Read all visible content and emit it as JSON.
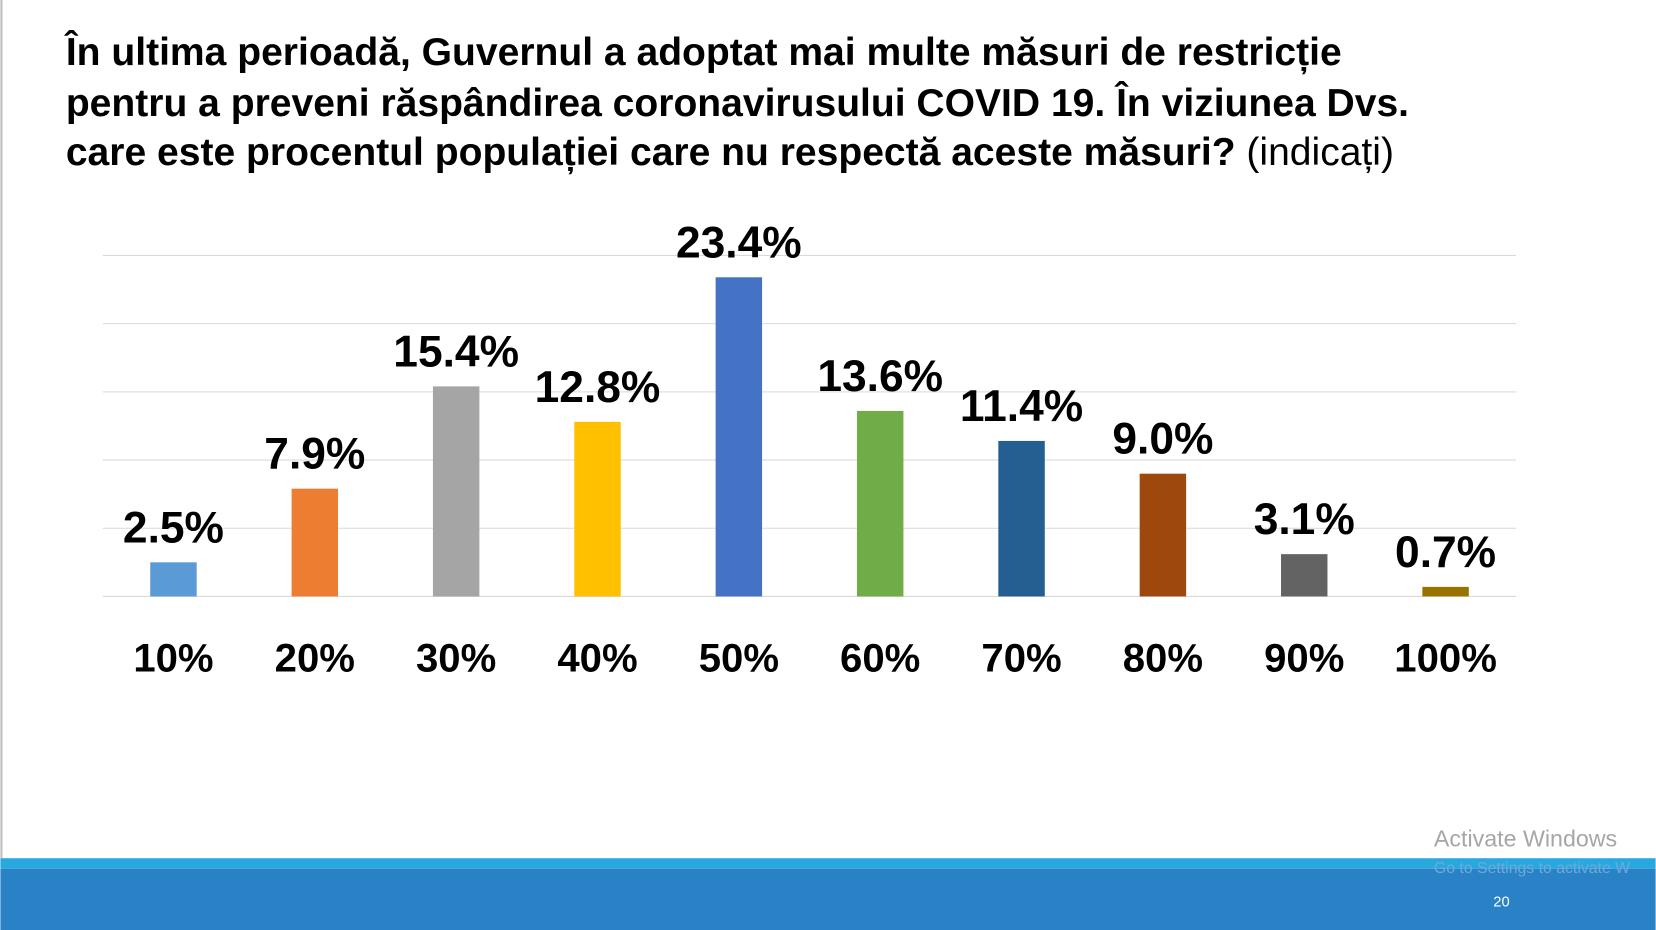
{
  "chart_data": {
    "type": "bar",
    "title": [
      "În ultima perioadă, Guvernul a adoptat mai multe măsuri de restricție",
      "pentru a preveni răspândirea coronavirusului COVID 19. În viziunea Dvs.",
      "care este procentul populației care nu respectă aceste măsuri?"
    ],
    "subtitle": "(indicați)",
    "categories": [
      "10%",
      "20%",
      "30%",
      "40%",
      "50%",
      "60%",
      "70%",
      "80%",
      "90%",
      "100%"
    ],
    "values": [
      2.5,
      7.9,
      15.4,
      12.8,
      23.4,
      13.6,
      11.4,
      9.0,
      3.1,
      0.7
    ],
    "value_labels": [
      "2.5%",
      "7.9%",
      "15.4%",
      "12.8%",
      "23.4%",
      "13.6%",
      "11.4%",
      "9.0%",
      "3.1%",
      "0.7%"
    ],
    "colors": [
      "#5b9bd5",
      "#ed7d31",
      "#a5a5a5",
      "#ffc000",
      "#4472c4",
      "#70ad47",
      "#255e91",
      "#9e480e",
      "#636363",
      "#997300"
    ],
    "ylim": [
      0,
      25
    ],
    "yticks": [
      0,
      5,
      10,
      15,
      20,
      25
    ],
    "grid": true
  },
  "footer": {
    "page_number": "20",
    "watermark": [
      "Activate Windows",
      "Go to Settings to activate W"
    ]
  }
}
